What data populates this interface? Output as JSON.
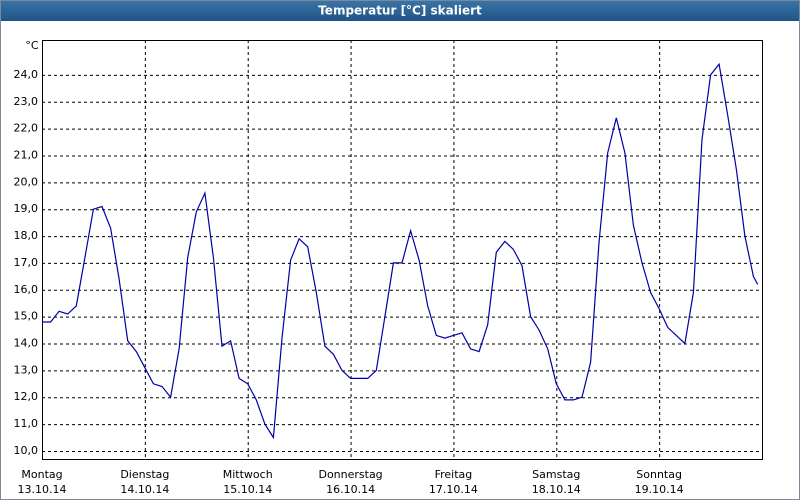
{
  "chart_data": {
    "type": "line",
    "title": "Temperatur [°C] skaliert",
    "ylabel": "°C",
    "xlim": [
      0,
      168
    ],
    "xticks": [
      {
        "value": 0,
        "label": "Montag",
        "date": "13.10.14"
      },
      {
        "value": 24,
        "label": "Dienstag",
        "date": "14.10.14"
      },
      {
        "value": 48,
        "label": "Mittwoch",
        "date": "15.10.14"
      },
      {
        "value": 72,
        "label": "Donnerstag",
        "date": "16.10.14"
      },
      {
        "value": 96,
        "label": "Freitag",
        "date": "17.10.14"
      },
      {
        "value": 120,
        "label": "Samstag",
        "date": "18.10.14"
      },
      {
        "value": 144,
        "label": "Sonntag",
        "date": "19.10.14"
      }
    ],
    "ylim": [
      9.7,
      25.3
    ],
    "yticks": [
      {
        "value": 10,
        "label": "10,0"
      },
      {
        "value": 11,
        "label": "11,0"
      },
      {
        "value": 12,
        "label": "12,0"
      },
      {
        "value": 13,
        "label": "13,0"
      },
      {
        "value": 14,
        "label": "14,0"
      },
      {
        "value": 15,
        "label": "15,0"
      },
      {
        "value": 16,
        "label": "16,0"
      },
      {
        "value": 17,
        "label": "17,0"
      },
      {
        "value": 18,
        "label": "18,0"
      },
      {
        "value": 19,
        "label": "19,0"
      },
      {
        "value": 20,
        "label": "20,0"
      },
      {
        "value": 21,
        "label": "21,0"
      },
      {
        "value": 22,
        "label": "22,0"
      },
      {
        "value": 23,
        "label": "23,0"
      },
      {
        "value": 24,
        "label": "24,0"
      }
    ],
    "grid": true,
    "x": [
      0,
      2,
      4,
      6,
      8,
      10,
      12,
      14,
      16,
      18,
      20,
      22,
      24,
      26,
      28,
      30,
      32,
      34,
      36,
      38,
      40,
      42,
      44,
      46,
      48,
      50,
      52,
      54,
      56,
      58,
      60,
      62,
      64,
      66,
      68,
      70,
      72,
      74,
      76,
      78,
      80,
      82,
      84,
      86,
      88,
      90,
      92,
      94,
      96,
      98,
      100,
      102,
      104,
      106,
      108,
      110,
      112,
      114,
      116,
      118,
      120,
      122,
      124,
      126,
      128,
      130,
      132,
      134,
      136,
      138,
      140,
      142,
      144,
      146,
      148,
      150,
      152,
      154,
      156,
      158,
      160,
      162,
      164,
      166,
      167
    ],
    "series": [
      {
        "name": "Temperatur",
        "color": "#0000a8",
        "values": [
          14.8,
          14.8,
          15.2,
          15.1,
          15.4,
          17.2,
          19.0,
          19.1,
          18.3,
          16.4,
          14.1,
          13.7,
          13.1,
          12.5,
          12.4,
          12.0,
          13.8,
          17.2,
          18.9,
          19.6,
          17.2,
          13.9,
          14.1,
          12.7,
          12.5,
          11.9,
          11.0,
          10.5,
          14.2,
          17.1,
          17.9,
          17.6,
          15.9,
          13.9,
          13.6,
          13.0,
          12.7,
          12.7,
          12.7,
          13.0,
          15.0,
          17.0,
          17.0,
          18.2,
          17.1,
          15.4,
          14.3,
          14.2,
          14.3,
          14.4,
          13.8,
          13.7,
          14.7,
          17.4,
          17.8,
          17.5,
          16.9,
          15.0,
          14.5,
          13.8,
          12.5,
          11.9,
          11.9,
          12.0,
          13.3,
          17.8,
          21.1,
          22.4,
          21.1,
          18.4,
          17.0,
          15.9,
          15.3,
          14.6,
          14.3,
          14.0,
          15.9,
          21.6,
          24.0,
          24.4,
          22.5,
          20.5,
          18.0,
          16.5,
          16.2
        ]
      }
    ]
  }
}
